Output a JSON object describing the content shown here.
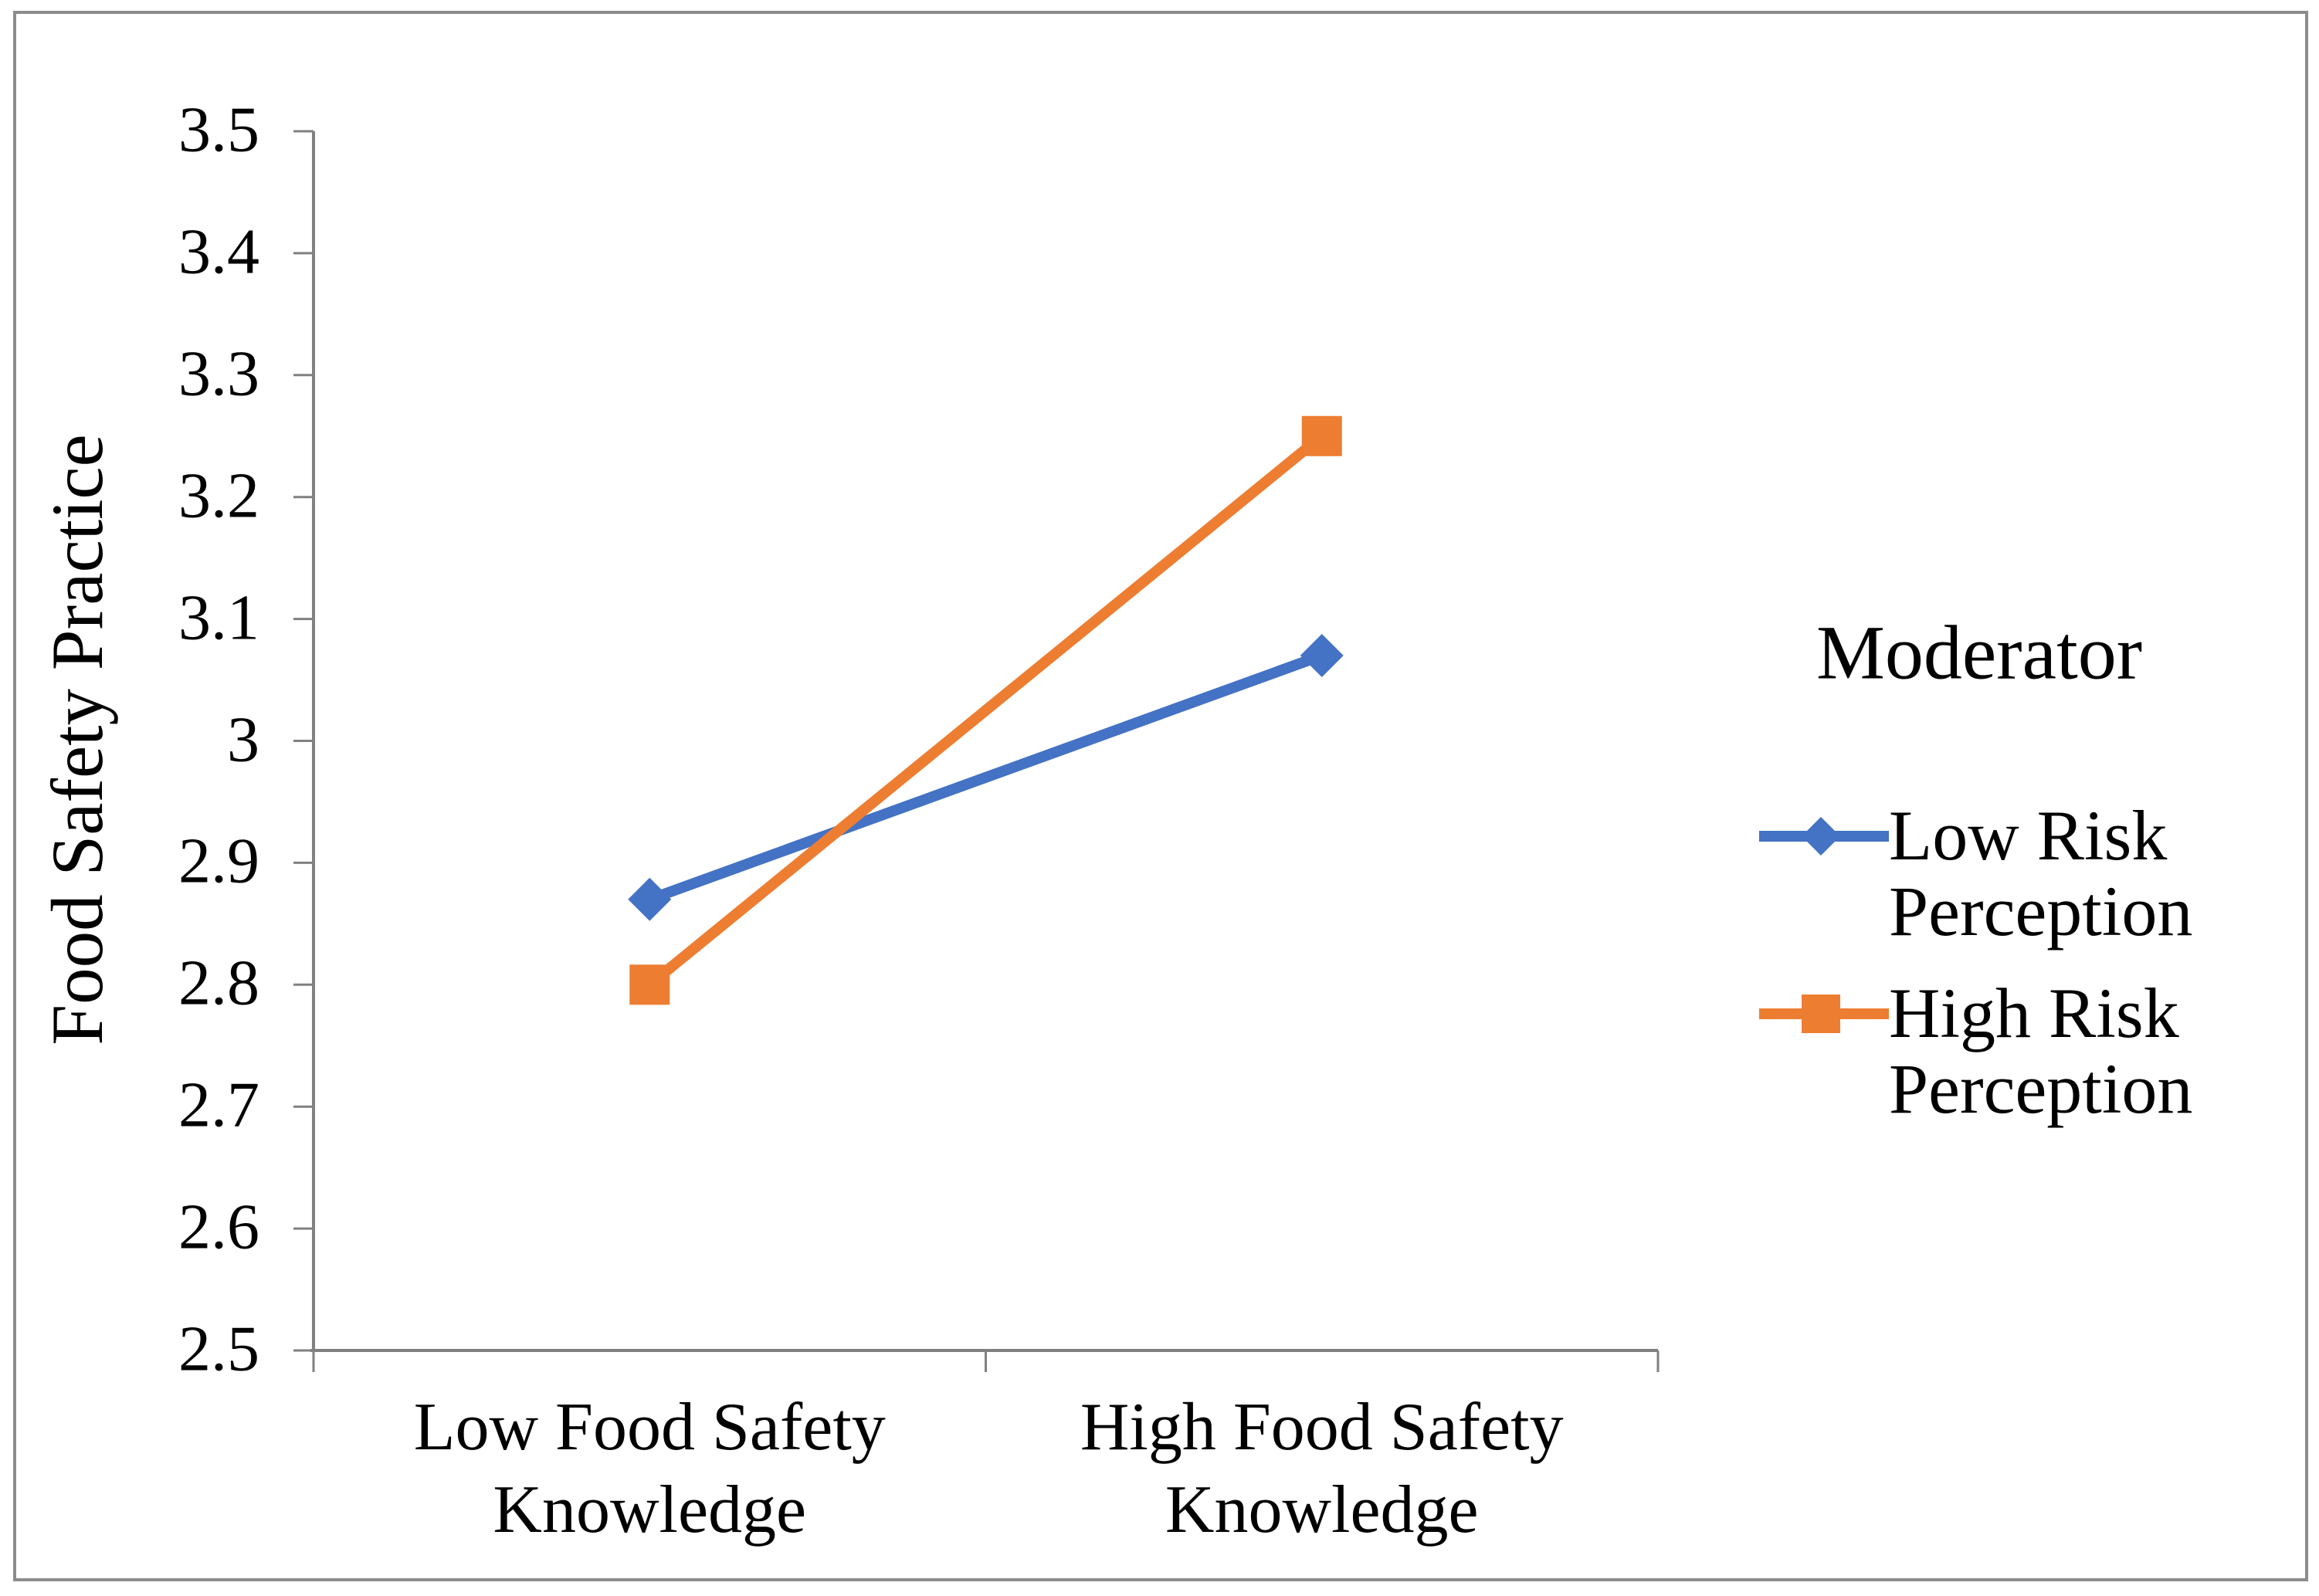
{
  "legend": {
    "title": "Moderator",
    "position": "right-middle",
    "entries": [
      {
        "label": "Low Risk Perception",
        "marker": "diamond-icon",
        "color": "#4472C4"
      },
      {
        "label": "High Risk Perception",
        "marker": "square-icon",
        "color": "#ED7D31"
      }
    ]
  },
  "chart_data": {
    "type": "line",
    "title": "",
    "xlabel": "",
    "ylabel": "Food Safety Practice",
    "categories": [
      "Low Food Safety Knowledge",
      "High Food Safety Knowledge"
    ],
    "series": [
      {
        "name": "Low Risk Perception",
        "color": "#4472C4",
        "marker": "diamond",
        "values": [
          2.87,
          3.07
        ]
      },
      {
        "name": "High Risk Perception",
        "color": "#ED7D31",
        "marker": "square",
        "values": [
          2.8,
          3.25
        ]
      }
    ],
    "ylim": [
      2.5,
      3.5
    ],
    "ytick_step": 0.1,
    "ytick_labels": [
      "3.5",
      "3.4",
      "3.3",
      "3.2",
      "3.1",
      "3",
      "2.9",
      "2.8",
      "2.7",
      "2.6",
      "2.5"
    ],
    "grid": false,
    "legend_position": "right-middle",
    "axis_color": "#808080",
    "figure_border_color": "#8c8c8c",
    "background_color": "#ffffff"
  }
}
